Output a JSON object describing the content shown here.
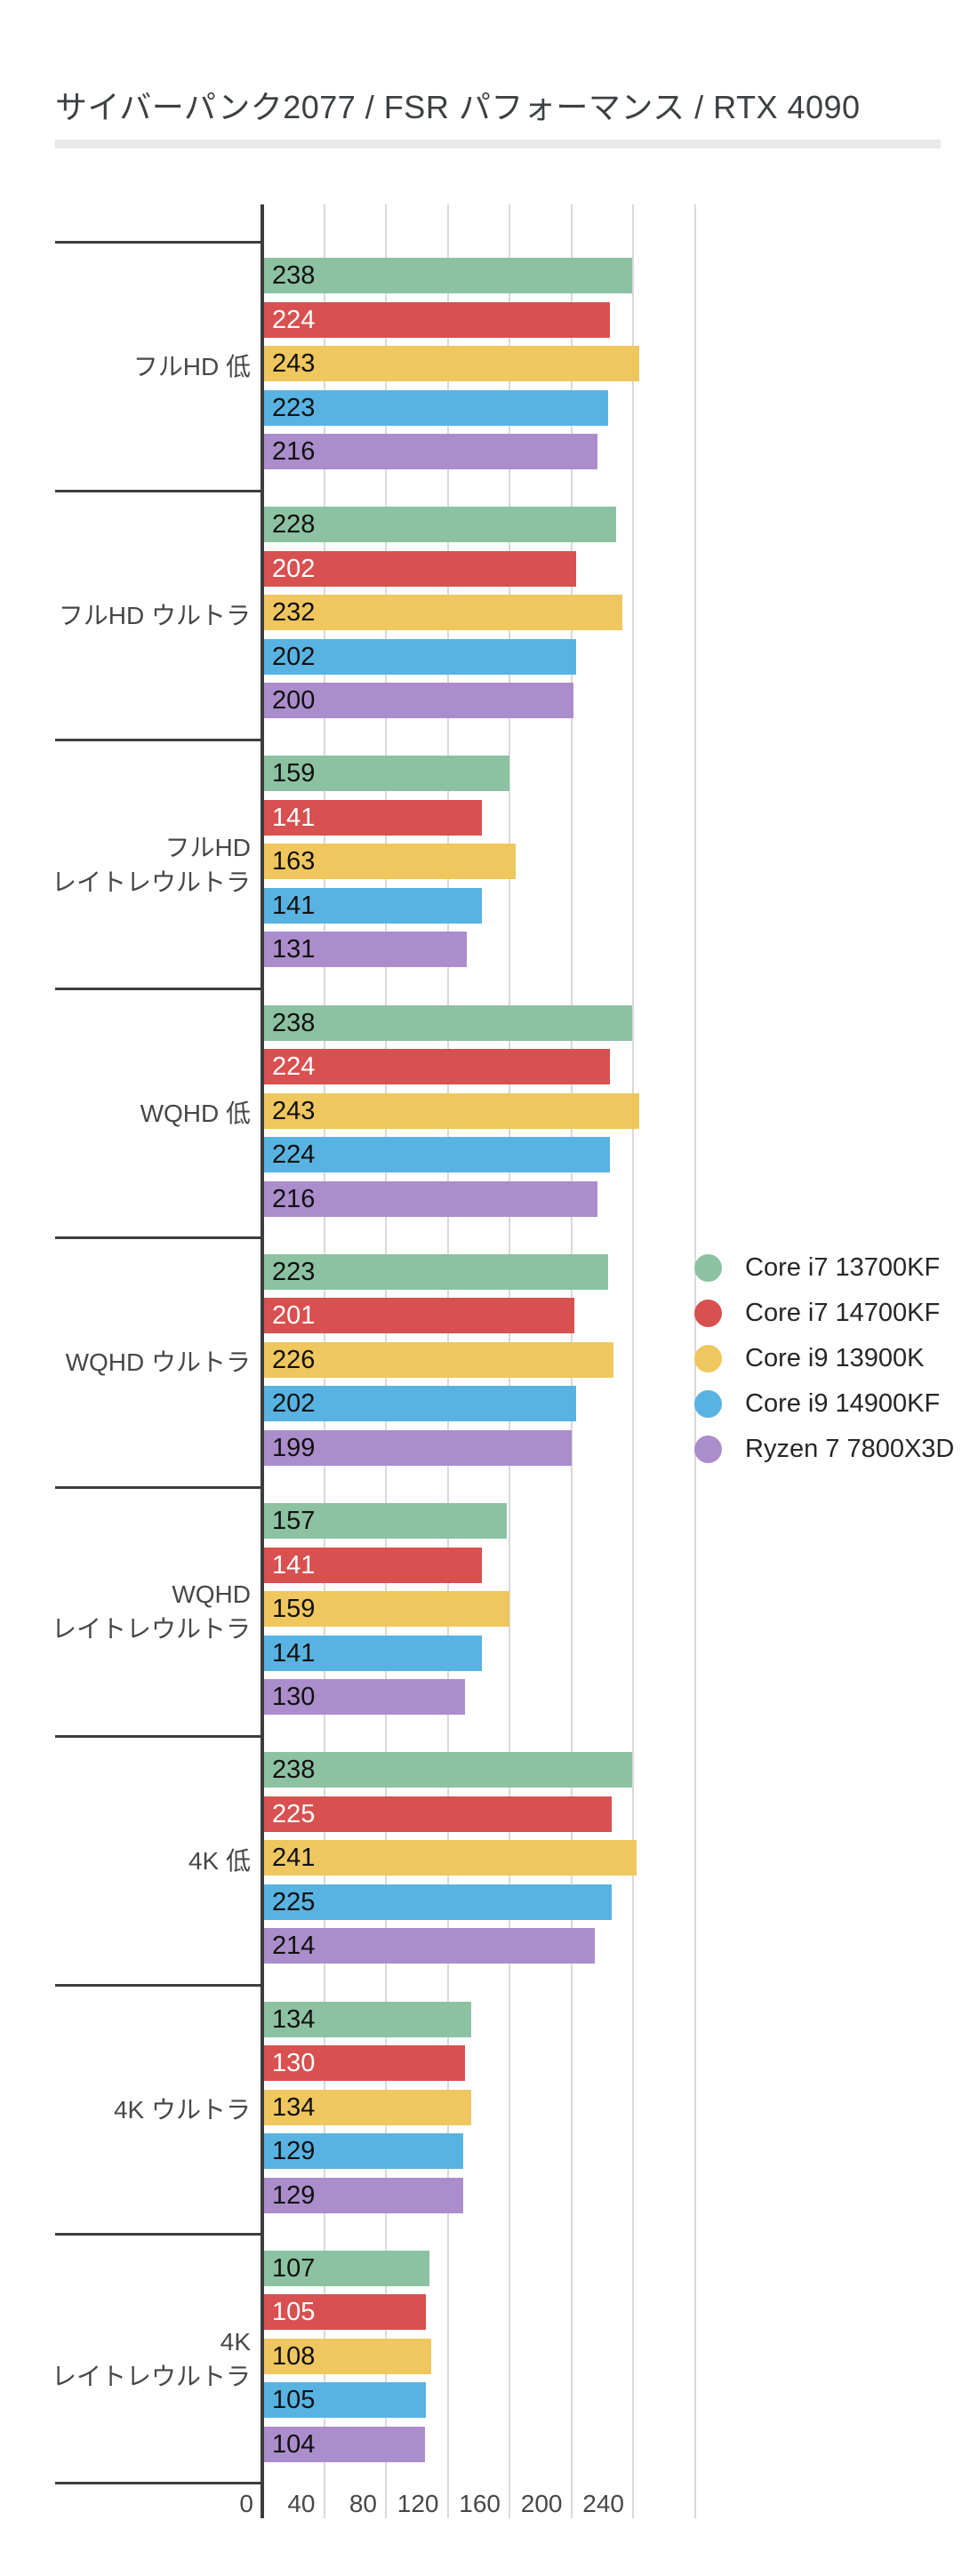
{
  "title": "サイバーパンク2077 / FSR パフォーマンス / RTX 4090",
  "chart_data": {
    "type": "bar",
    "orientation": "horizontal",
    "title": "サイバーパンク2077 / FSR パフォーマンス / RTX 4090",
    "categories": [
      "フルHD 低",
      "フルHD ウルトラ",
      "フルHD\nレイトレウルトラ",
      "WQHD 低",
      "WQHD ウルトラ",
      "WQHD\nレイトレウルトラ",
      "4K 低",
      "4K ウルトラ",
      "4K\nレイトレウルトラ"
    ],
    "series": [
      {
        "name": "Core i7 13700KF",
        "color": "#8CC2A2",
        "label_color": "#111111",
        "values": [
          238,
          228,
          159,
          238,
          223,
          157,
          238,
          134,
          107
        ]
      },
      {
        "name": "Core i7 14700KF",
        "color": "#D8504F",
        "label_color": "#FFFFFF",
        "values": [
          224,
          202,
          141,
          224,
          201,
          141,
          225,
          130,
          105
        ]
      },
      {
        "name": "Core i9 13900K",
        "color": "#EFC75E",
        "label_color": "#111111",
        "values": [
          243,
          232,
          163,
          243,
          226,
          159,
          241,
          134,
          108
        ]
      },
      {
        "name": "Core i9 14900KF",
        "color": "#58B3E2",
        "label_color": "#111111",
        "values": [
          223,
          202,
          141,
          224,
          202,
          141,
          225,
          129,
          105
        ]
      },
      {
        "name": "Ryzen 7 7800X3D",
        "color": "#AB8DCB",
        "label_color": "#111111",
        "values": [
          216,
          200,
          131,
          216,
          199,
          130,
          214,
          129,
          104
        ]
      }
    ],
    "xticks": [
      0,
      40,
      80,
      120,
      160,
      200,
      240
    ],
    "xmax": 280,
    "grid": true,
    "legend_position": "right",
    "axis_color": "#3d3d3d",
    "gridline_color": "#d9d9d9"
  }
}
